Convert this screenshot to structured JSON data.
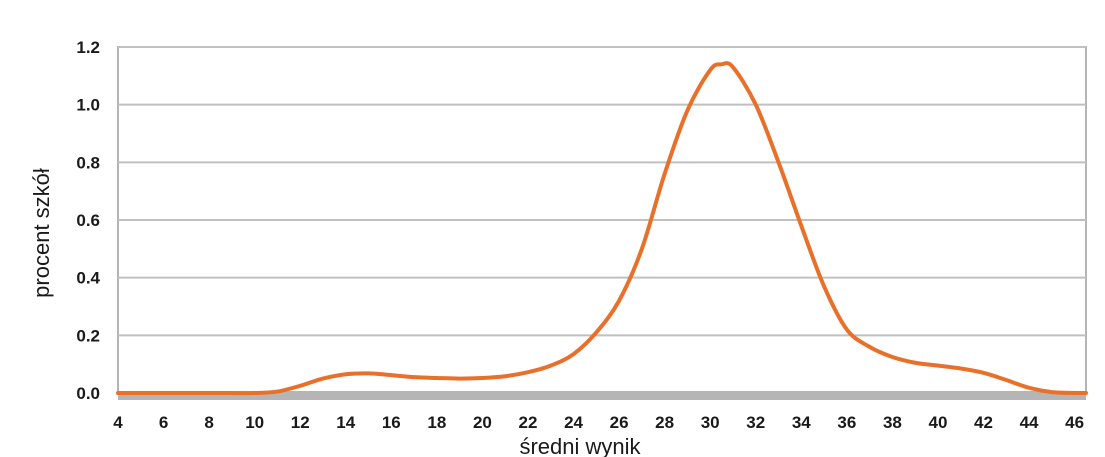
{
  "chart_data": {
    "type": "line",
    "title": "",
    "xlabel": "średni wynik",
    "ylabel": "procent szkół",
    "xlim": [
      4,
      46.5
    ],
    "ylim": [
      0,
      1.2
    ],
    "x_ticks": [
      "4",
      "6",
      "8",
      "10",
      "12",
      "14",
      "16",
      "18",
      "20",
      "22",
      "24",
      "26",
      "28",
      "30",
      "32",
      "34",
      "36",
      "38",
      "40",
      "42",
      "44",
      "46"
    ],
    "y_ticks": [
      "0.0",
      "0.2",
      "0.4",
      "0.6",
      "0.8",
      "1.0",
      "1.2"
    ],
    "grid": true,
    "legend": "none",
    "colors": {
      "line": "#e8702a",
      "grid": "#c0c0c0",
      "baseline": "#b5b5b5"
    },
    "series": [
      {
        "x": [
          4,
          6,
          8,
          10,
          11,
          12,
          13,
          14,
          15,
          16,
          17,
          18,
          19,
          20,
          21,
          22,
          23,
          24,
          25,
          26,
          27,
          28,
          29,
          30,
          30.5,
          31,
          32,
          33,
          34,
          35,
          36,
          37,
          38,
          39,
          40,
          41,
          42,
          43,
          44,
          45,
          46,
          46.5
        ],
        "y": [
          0.0,
          0.0,
          0.0,
          0.0,
          0.005,
          0.025,
          0.05,
          0.065,
          0.068,
          0.062,
          0.055,
          0.052,
          0.05,
          0.052,
          0.058,
          0.072,
          0.095,
          0.135,
          0.21,
          0.32,
          0.5,
          0.76,
          0.98,
          1.12,
          1.14,
          1.13,
          1.0,
          0.8,
          0.58,
          0.37,
          0.22,
          0.16,
          0.125,
          0.105,
          0.095,
          0.085,
          0.07,
          0.045,
          0.018,
          0.003,
          0.0,
          0.0
        ]
      }
    ]
  }
}
